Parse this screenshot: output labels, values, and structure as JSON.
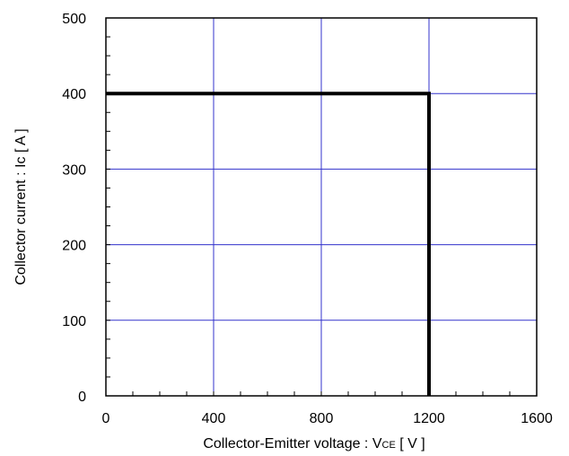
{
  "chart_data": {
    "type": "line",
    "title": "",
    "xlabel": "Collector-Emitter voltage : VCE [ V ]",
    "xlabel_parts": {
      "prefix": "Collector-Emitter voltage : V",
      "subscript": "CE",
      "suffix": " [ V ]"
    },
    "ylabel": "Collector current : Ic [ A ]",
    "xlim": [
      0,
      1600
    ],
    "ylim": [
      0,
      500
    ],
    "xticks": [
      0,
      400,
      800,
      1200,
      1600
    ],
    "yticks": [
      0,
      100,
      200,
      300,
      400,
      500
    ],
    "xtick_labels": [
      "0",
      "400",
      "800",
      "1200",
      "1600"
    ],
    "ytick_labels": [
      "0",
      "100",
      "200",
      "300",
      "400",
      "500"
    ],
    "grid": true,
    "legend": "none",
    "series": [
      {
        "x": [
          0,
          1200,
          1200
        ],
        "y": [
          400,
          400,
          0
        ]
      }
    ],
    "colors": {
      "grid": "#3333cc",
      "series": "#000000",
      "frame": "#000000"
    }
  }
}
